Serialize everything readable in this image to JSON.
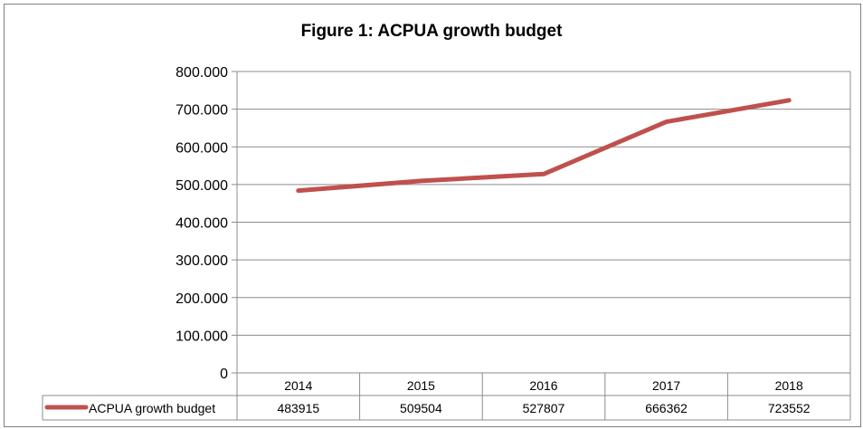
{
  "chart_data": {
    "type": "line",
    "title": "Figure 1: ACPUA growth budget",
    "categories": [
      "2014",
      "2015",
      "2016",
      "2017",
      "2018"
    ],
    "series": [
      {
        "name": "ACPUA growth budget",
        "values": [
          483915,
          509504,
          527807,
          666362,
          723552
        ],
        "color": "#c0504d"
      }
    ],
    "ylim": [
      0,
      800000
    ],
    "yticks": [
      0,
      100000,
      200000,
      300000,
      400000,
      500000,
      600000,
      700000,
      800000
    ],
    "ytick_labels": [
      "0",
      "100.000",
      "200.000",
      "300.000",
      "400.000",
      "500.000",
      "600.000",
      "700.000",
      "800.000"
    ],
    "table_values": [
      "483915",
      "509504",
      "527807",
      "666362",
      "723552"
    ],
    "grid": true,
    "data_table": true
  }
}
